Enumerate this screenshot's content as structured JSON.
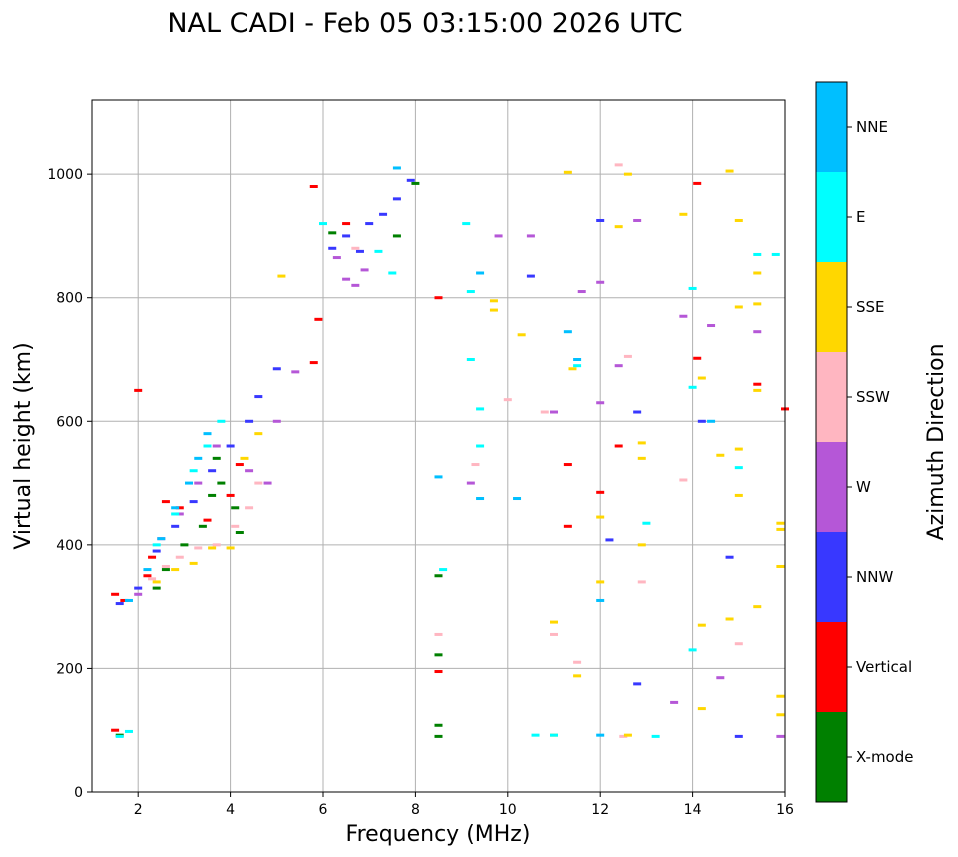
{
  "chart_data": {
    "type": "scatter",
    "title": "NAL CADI - Feb 05 03:15:00 2026 UTC",
    "xlabel": "Frequency (MHz)",
    "ylabel": "Virtual height (km)",
    "xlim": [
      1,
      16
    ],
    "ylim": [
      0,
      1120
    ],
    "xticks": [
      2,
      4,
      6,
      8,
      10,
      12,
      14,
      16
    ],
    "yticks": [
      0,
      200,
      400,
      600,
      800,
      1000
    ],
    "grid": true,
    "colorbar": {
      "label": "Azimuth Direction",
      "position": "right",
      "categories": [
        {
          "name": "X-mode",
          "color": "#008000"
        },
        {
          "name": "Vertical",
          "color": "#ff0000"
        },
        {
          "name": "NNW",
          "color": "#3838ff"
        },
        {
          "name": "W",
          "color": "#b557d7"
        },
        {
          "name": "SSW",
          "color": "#ffb6c1"
        },
        {
          "name": "SSE",
          "color": "#ffd700"
        },
        {
          "name": "E",
          "color": "#00ffff"
        },
        {
          "name": "NNE",
          "color": "#00bfff"
        }
      ]
    },
    "series": [
      {
        "name": "X-mode",
        "points": [
          [
            1.6,
            92
          ],
          [
            2.4,
            330
          ],
          [
            2.6,
            360
          ],
          [
            3.0,
            400
          ],
          [
            3.4,
            430
          ],
          [
            3.6,
            480
          ],
          [
            3.7,
            540
          ],
          [
            3.8,
            500
          ],
          [
            4.1,
            460
          ],
          [
            4.2,
            420
          ],
          [
            6.2,
            905
          ],
          [
            7.6,
            900
          ],
          [
            8.0,
            985
          ],
          [
            8.5,
            90
          ],
          [
            8.5,
            108
          ],
          [
            8.5,
            222
          ],
          [
            8.5,
            350
          ]
        ]
      },
      {
        "name": "Vertical",
        "points": [
          [
            1.5,
            100
          ],
          [
            1.5,
            320
          ],
          [
            1.7,
            310
          ],
          [
            2.0,
            650
          ],
          [
            2.2,
            350
          ],
          [
            2.3,
            380
          ],
          [
            2.6,
            470
          ],
          [
            2.9,
            460
          ],
          [
            3.5,
            440
          ],
          [
            4.0,
            480
          ],
          [
            4.2,
            530
          ],
          [
            5.8,
            980
          ],
          [
            5.8,
            695
          ],
          [
            5.9,
            765
          ],
          [
            6.5,
            920
          ],
          [
            8.5,
            800
          ],
          [
            8.5,
            195
          ],
          [
            11.3,
            530
          ],
          [
            11.3,
            430
          ],
          [
            12.4,
            560
          ],
          [
            12.0,
            485
          ],
          [
            14.1,
            985
          ],
          [
            14.1,
            702
          ],
          [
            15.4,
            660
          ],
          [
            16.0,
            620
          ]
        ]
      },
      {
        "name": "NNW",
        "points": [
          [
            1.6,
            305
          ],
          [
            2.0,
            330
          ],
          [
            2.4,
            390
          ],
          [
            2.8,
            430
          ],
          [
            3.2,
            470
          ],
          [
            3.6,
            520
          ],
          [
            4.0,
            560
          ],
          [
            4.4,
            600
          ],
          [
            4.6,
            640
          ],
          [
            5.0,
            685
          ],
          [
            6.2,
            880
          ],
          [
            6.5,
            900
          ],
          [
            6.8,
            875
          ],
          [
            7.0,
            920
          ],
          [
            7.3,
            935
          ],
          [
            7.6,
            960
          ],
          [
            7.9,
            990
          ],
          [
            10.5,
            835
          ],
          [
            12.0,
            925
          ],
          [
            12.8,
            615
          ],
          [
            12.8,
            175
          ],
          [
            14.2,
            600
          ],
          [
            15.0,
            90
          ],
          [
            14.8,
            380
          ],
          [
            12.2,
            408
          ]
        ]
      },
      {
        "name": "W",
        "points": [
          [
            2.0,
            320
          ],
          [
            2.5,
            410
          ],
          [
            2.9,
            450
          ],
          [
            3.3,
            500
          ],
          [
            3.7,
            560
          ],
          [
            4.4,
            520
          ],
          [
            4.8,
            500
          ],
          [
            5.0,
            600
          ],
          [
            5.4,
            680
          ],
          [
            6.3,
            865
          ],
          [
            6.5,
            830
          ],
          [
            6.7,
            820
          ],
          [
            6.9,
            845
          ],
          [
            9.2,
            500
          ],
          [
            9.8,
            900
          ],
          [
            10.5,
            900
          ],
          [
            11.0,
            615
          ],
          [
            11.6,
            810
          ],
          [
            12.0,
            825
          ],
          [
            12.0,
            630
          ],
          [
            12.4,
            690
          ],
          [
            12.8,
            925
          ],
          [
            13.8,
            770
          ],
          [
            14.4,
            755
          ],
          [
            15.4,
            745
          ],
          [
            15.9,
            90
          ],
          [
            13.6,
            145
          ],
          [
            14.6,
            185
          ]
        ]
      },
      {
        "name": "SSW",
        "points": [
          [
            2.3,
            345
          ],
          [
            2.6,
            365
          ],
          [
            2.9,
            380
          ],
          [
            3.3,
            395
          ],
          [
            3.7,
            400
          ],
          [
            4.1,
            430
          ],
          [
            4.4,
            460
          ],
          [
            4.6,
            500
          ],
          [
            6.7,
            880
          ],
          [
            8.5,
            255
          ],
          [
            9.3,
            530
          ],
          [
            10.0,
            635
          ],
          [
            10.8,
            615
          ],
          [
            11.0,
            255
          ],
          [
            11.5,
            210
          ],
          [
            12.6,
            705
          ],
          [
            12.9,
            340
          ],
          [
            12.5,
            90
          ],
          [
            13.8,
            505
          ],
          [
            15.0,
            240
          ],
          [
            12.4,
            1015
          ]
        ]
      },
      {
        "name": "SSE",
        "points": [
          [
            2.4,
            340
          ],
          [
            2.8,
            360
          ],
          [
            3.2,
            370
          ],
          [
            3.6,
            395
          ],
          [
            4.0,
            395
          ],
          [
            4.3,
            540
          ],
          [
            4.6,
            580
          ],
          [
            5.1,
            835
          ],
          [
            9.7,
            795
          ],
          [
            9.7,
            780
          ],
          [
            10.3,
            740
          ],
          [
            11.3,
            1003
          ],
          [
            11.4,
            685
          ],
          [
            11.0,
            92
          ],
          [
            11.0,
            275
          ],
          [
            11.5,
            188
          ],
          [
            12.0,
            340
          ],
          [
            12.0,
            445
          ],
          [
            12.4,
            915
          ],
          [
            12.6,
            92
          ],
          [
            12.6,
            1000
          ],
          [
            12.9,
            565
          ],
          [
            12.9,
            540
          ],
          [
            12.9,
            400
          ],
          [
            13.8,
            935
          ],
          [
            14.2,
            670
          ],
          [
            14.2,
            270
          ],
          [
            14.2,
            135
          ],
          [
            14.6,
            545
          ],
          [
            14.8,
            1005
          ],
          [
            14.8,
            280
          ],
          [
            15.0,
            925
          ],
          [
            15.0,
            785
          ],
          [
            15.0,
            555
          ],
          [
            15.0,
            480
          ],
          [
            15.4,
            840
          ],
          [
            15.4,
            790
          ],
          [
            15.4,
            650
          ],
          [
            15.4,
            300
          ],
          [
            15.9,
            435
          ],
          [
            15.9,
            425
          ],
          [
            15.9,
            365
          ],
          [
            15.9,
            155
          ],
          [
            15.9,
            125
          ]
        ]
      },
      {
        "name": "E",
        "points": [
          [
            1.6,
            90
          ],
          [
            1.8,
            98
          ],
          [
            2.4,
            400
          ],
          [
            2.8,
            450
          ],
          [
            3.2,
            520
          ],
          [
            3.5,
            560
          ],
          [
            3.8,
            600
          ],
          [
            6.0,
            920
          ],
          [
            7.2,
            875
          ],
          [
            7.5,
            840
          ],
          [
            9.1,
            920
          ],
          [
            9.2,
            810
          ],
          [
            9.2,
            700
          ],
          [
            9.4,
            620
          ],
          [
            9.4,
            560
          ],
          [
            8.6,
            360
          ],
          [
            10.6,
            92
          ],
          [
            11.0,
            92
          ],
          [
            11.5,
            690
          ],
          [
            13.0,
            435
          ],
          [
            13.2,
            90
          ],
          [
            14.0,
            815
          ],
          [
            14.0,
            655
          ],
          [
            14.0,
            230
          ],
          [
            15.0,
            525
          ],
          [
            15.4,
            870
          ],
          [
            15.8,
            870
          ]
        ]
      },
      {
        "name": "NNE",
        "points": [
          [
            1.8,
            310
          ],
          [
            2.2,
            360
          ],
          [
            2.5,
            410
          ],
          [
            2.8,
            460
          ],
          [
            3.1,
            500
          ],
          [
            3.3,
            540
          ],
          [
            3.5,
            580
          ],
          [
            7.6,
            1010
          ],
          [
            9.4,
            475
          ],
          [
            9.4,
            840
          ],
          [
            10.2,
            475
          ],
          [
            11.3,
            745
          ],
          [
            11.5,
            700
          ],
          [
            12.0,
            310
          ],
          [
            12.0,
            92
          ],
          [
            8.5,
            510
          ],
          [
            14.4,
            600
          ]
        ]
      }
    ]
  }
}
